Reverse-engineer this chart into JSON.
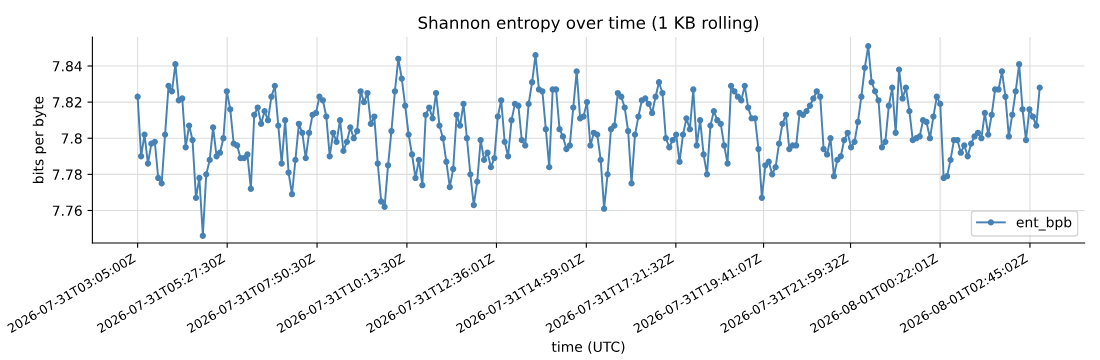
{
  "chart_data": {
    "type": "line",
    "title": "Shannon entropy over time (1 KB rolling)",
    "xlabel": "time (UTC)",
    "ylabel": "bits per byte",
    "x": [
      "2026-07-31T03:05:00",
      "2026-07-31T03:10:30",
      "2026-07-31T03:15:55",
      "2026-07-31T03:21:25",
      "2026-07-31T03:26:50",
      "2026-07-31T03:32:20",
      "2026-07-31T03:37:45",
      "2026-07-31T03:43:15",
      "2026-07-31T03:48:40",
      "2026-07-31T03:54:10",
      "2026-07-31T03:59:35",
      "2026-07-31T04:05:05",
      "2026-07-31T04:10:30",
      "2026-07-31T04:16:00",
      "2026-07-31T04:21:25",
      "2026-07-31T04:26:55",
      "2026-07-31T04:32:20",
      "2026-07-31T04:37:50",
      "2026-07-31T04:43:15",
      "2026-07-31T04:48:45",
      "2026-07-31T04:54:10",
      "2026-07-31T04:59:40",
      "2026-07-31T05:05:05",
      "2026-07-31T05:10:35",
      "2026-07-31T05:16:00",
      "2026-07-31T05:21:30",
      "2026-07-31T05:26:55",
      "2026-07-31T05:32:25",
      "2026-07-31T05:37:50",
      "2026-07-31T05:43:20",
      "2026-07-31T05:48:45",
      "2026-07-31T05:54:15",
      "2026-07-31T05:59:40",
      "2026-07-31T06:05:10",
      "2026-07-31T06:10:35",
      "2026-07-31T06:16:05",
      "2026-07-31T06:21:30",
      "2026-07-31T06:27:00",
      "2026-07-31T06:32:25",
      "2026-07-31T06:37:55",
      "2026-07-31T06:43:20",
      "2026-07-31T06:48:50",
      "2026-07-31T06:54:15",
      "2026-07-31T06:59:45",
      "2026-07-31T07:05:10",
      "2026-07-31T07:10:40",
      "2026-07-31T07:16:05",
      "2026-07-31T07:21:35",
      "2026-07-31T07:27:00",
      "2026-07-31T07:32:30",
      "2026-07-31T07:37:55",
      "2026-07-31T07:43:25",
      "2026-07-31T07:48:50",
      "2026-07-31T07:54:20",
      "2026-07-31T07:59:45",
      "2026-07-31T08:05:15",
      "2026-07-31T08:10:40",
      "2026-07-31T08:16:10",
      "2026-07-31T08:21:35",
      "2026-07-31T08:27:05",
      "2026-07-31T08:32:30",
      "2026-07-31T08:38:00",
      "2026-07-31T08:43:25",
      "2026-07-31T08:48:55",
      "2026-07-31T08:54:20",
      "2026-07-31T08:59:50",
      "2026-07-31T09:05:15",
      "2026-07-31T09:10:45",
      "2026-07-31T09:16:10",
      "2026-07-31T09:21:40",
      "2026-07-31T09:27:05",
      "2026-07-31T09:32:35",
      "2026-07-31T09:38:00",
      "2026-07-31T09:43:30",
      "2026-07-31T09:48:55",
      "2026-07-31T09:54:25",
      "2026-07-31T09:59:50",
      "2026-07-31T10:05:20",
      "2026-07-31T10:10:45",
      "2026-07-31T10:16:15",
      "2026-07-31T10:21:40",
      "2026-07-31T10:27:10",
      "2026-07-31T10:32:35",
      "2026-07-31T10:38:05",
      "2026-07-31T10:43:30",
      "2026-07-31T10:49:00",
      "2026-07-31T10:54:25",
      "2026-07-31T10:59:55",
      "2026-07-31T11:05:20",
      "2026-07-31T11:10:50",
      "2026-07-31T11:16:15",
      "2026-07-31T11:21:45",
      "2026-07-31T11:27:10",
      "2026-07-31T11:32:40",
      "2026-07-31T11:38:05",
      "2026-07-31T11:43:35",
      "2026-07-31T11:49:00",
      "2026-07-31T11:54:30",
      "2026-07-31T11:59:55",
      "2026-07-31T12:05:25",
      "2026-07-31T12:10:50",
      "2026-07-31T12:16:20",
      "2026-07-31T12:21:45",
      "2026-07-31T12:27:15",
      "2026-07-31T12:32:40",
      "2026-07-31T12:38:10",
      "2026-07-31T12:43:35",
      "2026-07-31T12:49:05",
      "2026-07-31T12:54:30",
      "2026-07-31T13:00:00",
      "2026-07-31T13:05:25",
      "2026-07-31T13:10:55",
      "2026-07-31T13:16:20",
      "2026-07-31T13:21:50",
      "2026-07-31T13:27:15",
      "2026-07-31T13:32:45",
      "2026-07-31T13:38:10",
      "2026-07-31T13:43:40",
      "2026-07-31T13:49:05",
      "2026-07-31T13:54:35",
      "2026-07-31T14:00:00",
      "2026-07-31T14:05:30",
      "2026-07-31T14:10:55",
      "2026-07-31T14:16:25",
      "2026-07-31T14:21:50",
      "2026-07-31T14:27:20",
      "2026-07-31T14:32:45",
      "2026-07-31T14:38:15",
      "2026-07-31T14:43:40",
      "2026-07-31T14:49:10",
      "2026-07-31T14:54:35",
      "2026-07-31T15:00:05",
      "2026-07-31T15:05:30",
      "2026-07-31T15:11:00",
      "2026-07-31T15:16:25",
      "2026-07-31T15:21:55",
      "2026-07-31T15:27:20",
      "2026-07-31T15:32:50",
      "2026-07-31T15:38:15",
      "2026-07-31T15:43:45",
      "2026-07-31T15:49:10",
      "2026-07-31T15:54:40",
      "2026-07-31T16:00:05",
      "2026-07-31T16:05:35",
      "2026-07-31T16:11:00",
      "2026-07-31T16:16:30",
      "2026-07-31T16:21:55",
      "2026-07-31T16:27:25",
      "2026-07-31T16:32:50",
      "2026-07-31T16:38:20",
      "2026-07-31T16:43:45",
      "2026-07-31T16:49:15",
      "2026-07-31T16:54:40",
      "2026-07-31T17:00:10",
      "2026-07-31T17:05:35",
      "2026-07-31T17:11:05",
      "2026-07-31T17:16:30",
      "2026-07-31T17:22:00",
      "2026-07-31T17:27:25",
      "2026-07-31T17:32:55",
      "2026-07-31T17:38:20",
      "2026-07-31T17:43:50",
      "2026-07-31T17:49:15",
      "2026-07-31T17:54:45",
      "2026-07-31T18:00:10",
      "2026-07-31T18:05:40",
      "2026-07-31T18:11:05",
      "2026-07-31T18:16:35",
      "2026-07-31T18:22:00",
      "2026-07-31T18:27:30",
      "2026-07-31T18:32:55",
      "2026-07-31T18:38:25",
      "2026-07-31T18:43:50",
      "2026-07-31T18:49:20",
      "2026-07-31T18:54:45",
      "2026-07-31T19:00:15",
      "2026-07-31T19:05:40",
      "2026-07-31T19:11:10",
      "2026-07-31T19:16:35",
      "2026-07-31T19:22:05",
      "2026-07-31T19:27:30",
      "2026-07-31T19:33:00",
      "2026-07-31T19:38:25",
      "2026-07-31T19:43:55",
      "2026-07-31T19:49:20",
      "2026-07-31T19:54:50",
      "2026-07-31T20:00:15",
      "2026-07-31T20:05:45",
      "2026-07-31T20:11:10",
      "2026-07-31T20:16:40",
      "2026-07-31T20:22:05",
      "2026-07-31T20:27:35",
      "2026-07-31T20:33:00",
      "2026-07-31T20:38:30",
      "2026-07-31T20:43:55",
      "2026-07-31T20:49:25",
      "2026-07-31T20:54:50",
      "2026-07-31T21:00:20",
      "2026-07-31T21:05:45",
      "2026-07-31T21:11:15",
      "2026-07-31T21:16:40",
      "2026-07-31T21:22:10",
      "2026-07-31T21:27:35",
      "2026-07-31T21:33:05",
      "2026-07-31T21:38:30",
      "2026-07-31T21:44:00",
      "2026-07-31T21:49:25",
      "2026-07-31T21:54:55",
      "2026-07-31T22:00:20",
      "2026-07-31T22:05:50",
      "2026-07-31T22:11:15",
      "2026-07-31T22:16:45",
      "2026-07-31T22:22:10",
      "2026-07-31T22:27:40",
      "2026-07-31T22:33:05",
      "2026-07-31T22:38:35",
      "2026-07-31T22:44:00",
      "2026-07-31T22:49:30",
      "2026-07-31T22:54:55",
      "2026-07-31T23:00:25",
      "2026-07-31T23:05:50",
      "2026-07-31T23:11:20",
      "2026-07-31T23:16:45",
      "2026-07-31T23:22:15",
      "2026-07-31T23:27:40",
      "2026-07-31T23:33:10",
      "2026-07-31T23:38:35",
      "2026-07-31T23:44:05",
      "2026-07-31T23:49:30",
      "2026-07-31T23:55:00",
      "2026-08-01T00:00:25",
      "2026-08-01T00:05:55",
      "2026-08-01T00:11:20",
      "2026-08-01T00:16:50",
      "2026-08-01T00:22:15",
      "2026-08-01T00:27:45",
      "2026-08-01T00:33:10",
      "2026-08-01T00:38:40",
      "2026-08-01T00:44:05",
      "2026-08-01T00:49:35",
      "2026-08-01T00:55:00",
      "2026-08-01T01:00:30",
      "2026-08-01T01:05:55",
      "2026-08-01T01:11:25",
      "2026-08-01T01:16:50",
      "2026-08-01T01:22:20",
      "2026-08-01T01:27:45",
      "2026-08-01T01:33:15",
      "2026-08-01T01:38:40",
      "2026-08-01T01:44:10",
      "2026-08-01T01:49:35",
      "2026-08-01T01:55:05",
      "2026-08-01T02:00:30",
      "2026-08-01T02:06:00",
      "2026-08-01T02:11:25",
      "2026-08-01T02:16:55",
      "2026-08-01T02:22:20",
      "2026-08-01T02:27:50",
      "2026-08-01T02:33:15",
      "2026-08-01T02:38:45",
      "2026-08-01T02:44:10",
      "2026-08-01T02:49:40",
      "2026-08-01T02:55:05",
      "2026-08-01T03:00:35"
    ],
    "xlim": [
      "2026-07-31T01:53",
      "2026-08-01T04:12"
    ],
    "xticks": [
      {
        "value": "2026-07-31T03:05:00",
        "label": "2026-07-31T03:05:00Z"
      },
      {
        "value": "2026-07-31T05:27:30",
        "label": "2026-07-31T05:27:30Z"
      },
      {
        "value": "2026-07-31T07:50:30",
        "label": "2026-07-31T07:50:30Z"
      },
      {
        "value": "2026-07-31T10:13:30",
        "label": "2026-07-31T10:13:30Z"
      },
      {
        "value": "2026-07-31T12:36:01",
        "label": "2026-07-31T12:36:01Z"
      },
      {
        "value": "2026-07-31T14:59:01",
        "label": "2026-07-31T14:59:01Z"
      },
      {
        "value": "2026-07-31T17:21:32",
        "label": "2026-07-31T17:21:32Z"
      },
      {
        "value": "2026-07-31T19:41:07",
        "label": "2026-07-31T19:41:07Z"
      },
      {
        "value": "2026-07-31T21:59:32",
        "label": "2026-07-31T21:59:32Z"
      },
      {
        "value": "2026-08-01T00:22:01",
        "label": "2026-08-01T00:22:01Z"
      },
      {
        "value": "2026-08-01T02:45:02",
        "label": "2026-08-01T02:45:02Z"
      }
    ],
    "series": [
      {
        "name": "ent_bpb",
        "color": "#4682b4",
        "values": [
          7.823,
          7.79,
          7.802,
          7.786,
          7.797,
          7.798,
          7.778,
          7.775,
          7.802,
          7.829,
          7.826,
          7.841,
          7.821,
          7.822,
          7.795,
          7.807,
          7.799,
          7.767,
          7.778,
          7.746,
          7.78,
          7.788,
          7.806,
          7.79,
          7.792,
          7.8,
          7.826,
          7.816,
          7.797,
          7.796,
          7.789,
          7.789,
          7.791,
          7.772,
          7.813,
          7.817,
          7.808,
          7.815,
          7.81,
          7.823,
          7.829,
          7.807,
          7.786,
          7.81,
          7.781,
          7.769,
          7.788,
          7.808,
          7.803,
          7.789,
          7.803,
          7.813,
          7.814,
          7.823,
          7.821,
          7.812,
          7.79,
          7.803,
          7.798,
          7.81,
          7.793,
          7.798,
          7.806,
          7.8,
          7.804,
          7.826,
          7.82,
          7.825,
          7.808,
          7.812,
          7.786,
          7.765,
          7.762,
          7.785,
          7.804,
          7.826,
          7.844,
          7.833,
          7.818,
          7.802,
          7.791,
          7.778,
          7.788,
          7.774,
          7.813,
          7.817,
          7.811,
          7.825,
          7.807,
          7.8,
          7.787,
          7.773,
          7.783,
          7.813,
          7.807,
          7.819,
          7.8,
          7.78,
          7.763,
          7.776,
          7.799,
          7.788,
          7.792,
          7.784,
          7.789,
          7.812,
          7.821,
          7.798,
          7.79,
          7.81,
          7.819,
          7.818,
          7.799,
          7.796,
          7.819,
          7.831,
          7.846,
          7.827,
          7.826,
          7.805,
          7.784,
          7.827,
          7.827,
          7.805,
          7.801,
          7.794,
          7.796,
          7.817,
          7.837,
          7.811,
          7.812,
          7.82,
          7.796,
          7.803,
          7.802,
          7.788,
          7.761,
          7.78,
          7.805,
          7.807,
          7.825,
          7.823,
          7.817,
          7.804,
          7.775,
          7.802,
          7.812,
          7.821,
          7.822,
          7.819,
          7.814,
          7.823,
          7.831,
          7.825,
          7.8,
          7.795,
          7.799,
          7.802,
          7.787,
          7.802,
          7.811,
          7.805,
          7.827,
          7.796,
          7.81,
          7.791,
          7.78,
          7.807,
          7.815,
          7.81,
          7.808,
          7.796,
          7.786,
          7.829,
          7.826,
          7.823,
          7.821,
          7.829,
          7.817,
          7.811,
          7.811,
          7.794,
          7.767,
          7.785,
          7.787,
          7.78,
          7.784,
          7.797,
          7.808,
          7.813,
          7.794,
          7.796,
          7.796,
          7.814,
          7.813,
          7.815,
          7.818,
          7.822,
          7.826,
          7.823,
          7.794,
          7.791,
          7.8,
          7.779,
          7.788,
          7.79,
          7.799,
          7.803,
          7.795,
          7.798,
          7.809,
          7.823,
          7.839,
          7.851,
          7.831,
          7.826,
          7.821,
          7.795,
          7.798,
          7.818,
          7.828,
          7.803,
          7.838,
          7.822,
          7.828,
          7.815,
          7.799,
          7.8,
          7.801,
          7.81,
          7.809,
          7.8,
          7.812,
          7.823,
          7.819,
          7.778,
          7.779,
          7.788,
          7.799,
          7.799,
          7.792,
          7.796,
          7.79,
          7.797,
          7.801,
          7.803,
          7.8,
          7.814,
          7.802,
          7.813,
          7.827,
          7.827,
          7.837,
          7.823,
          7.801,
          7.813,
          7.826,
          7.841,
          7.816,
          7.799,
          7.816,
          7.812,
          7.807,
          7.828
        ]
      }
    ],
    "ylim": [
      7.742,
      7.856
    ],
    "yticks": [
      7.76,
      7.78,
      7.8,
      7.82,
      7.84
    ],
    "grid": true,
    "legend": "lower right",
    "marker": "circle",
    "line_style": "solid"
  }
}
